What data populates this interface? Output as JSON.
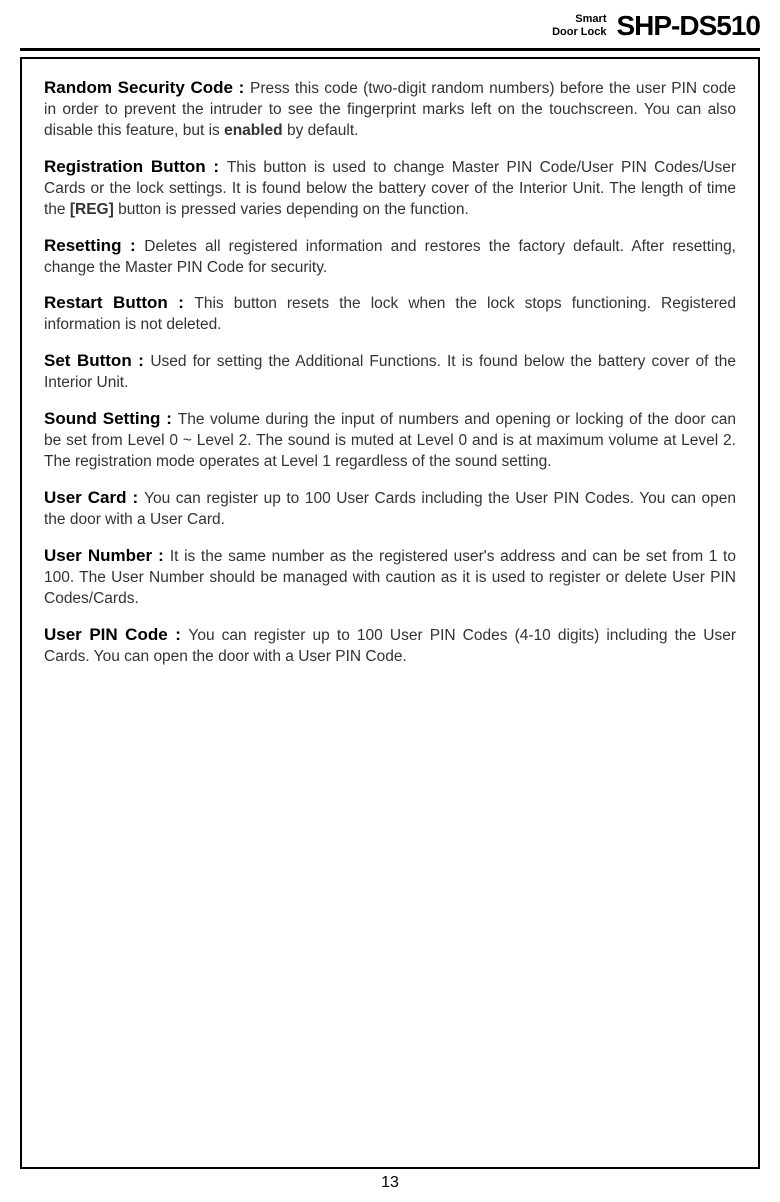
{
  "header": {
    "label_line1": "Smart",
    "label_line2": "Door Lock",
    "model": "SHP-DS510"
  },
  "entries": [
    {
      "term": "Random Security Code : ",
      "text_before_bold": "Press this code (two-digit random numbers) before the user PIN code in order to prevent the intruder to see the fingerprint marks left on the touchscreen. You can also disable this feature, but is ",
      "bold": "enabled",
      "text_after_bold": " by default."
    },
    {
      "term": "Registration Button : ",
      "text_before_bold": "This button is used to change Master PIN Code/User PIN Codes/User Cards or the lock settings. It is found below the battery cover of the Interior Unit. The length of time the ",
      "bold": "[REG]",
      "text_after_bold": " button is pressed varies depending on the function."
    },
    {
      "term": "Resetting : ",
      "text_before_bold": "Deletes all registered information and restores the factory default. After resetting, change the Master PIN Code for security.",
      "bold": "",
      "text_after_bold": ""
    },
    {
      "term": "Restart Button : ",
      "text_before_bold": "This button resets the lock when the lock stops functioning. Registered information is not deleted.",
      "bold": "",
      "text_after_bold": ""
    },
    {
      "term": "Set Button : ",
      "text_before_bold": "Used for setting the Additional Functions. It is found below the battery cover of the Interior Unit.",
      "bold": "",
      "text_after_bold": ""
    },
    {
      "term": "Sound Setting : ",
      "text_before_bold": "The volume during the input of numbers and opening or locking of the door  can be set from Level 0 ~ Level 2. The sound is muted at Level 0 and is at maximum volume at Level 2. The registration mode operates at Level 1 regardless of the sound setting.",
      "bold": "",
      "text_after_bold": ""
    },
    {
      "term": "User Card  : ",
      "text_before_bold": "You can register up to 100 User Cards including the User PIN Codes. You can open the door with a User Card.",
      "bold": "",
      "text_after_bold": ""
    },
    {
      "term": "User Number : ",
      "text_before_bold": "It is the same number as the registered user's address and can be set from 1 to 100. The User Number should be managed with caution as it is used to register or delete User PIN Codes/Cards.",
      "bold": "",
      "text_after_bold": ""
    },
    {
      "term": "User PIN Code : ",
      "text_before_bold": "You can register up to 100 User PIN Codes (4-10 digits) including the User Cards. You can open the door with a User PIN Code.",
      "bold": "",
      "text_after_bold": ""
    }
  ],
  "page_number": "13"
}
